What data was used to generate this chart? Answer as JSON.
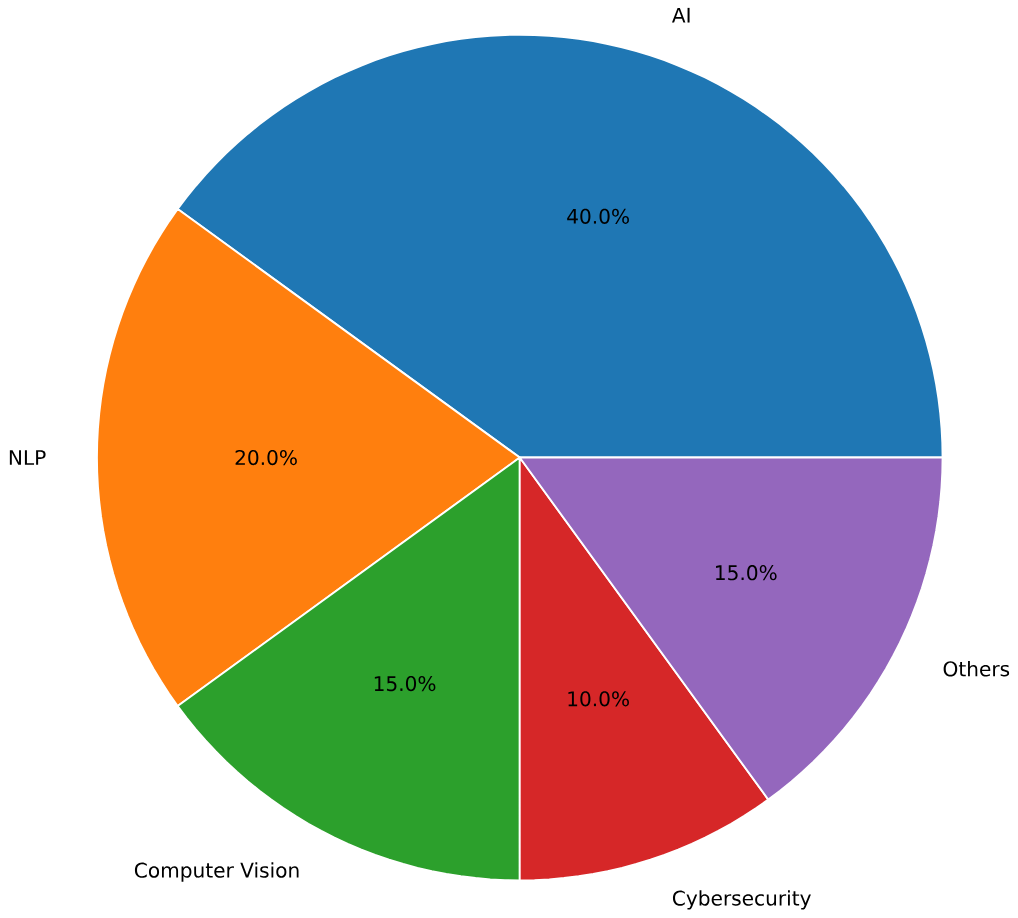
{
  "chart_data": {
    "type": "pie",
    "categories": [
      "AI",
      "NLP",
      "Computer Vision",
      "Cybersecurity",
      "Others"
    ],
    "values": [
      40,
      20,
      15,
      10,
      15
    ],
    "value_labels": [
      "40.0%",
      "20.0%",
      "15.0%",
      "10.0%",
      "15.0%"
    ],
    "colors": [
      "#1f77b4",
      "#ff7f0e",
      "#2ca02c",
      "#d62728",
      "#9467bd"
    ]
  }
}
